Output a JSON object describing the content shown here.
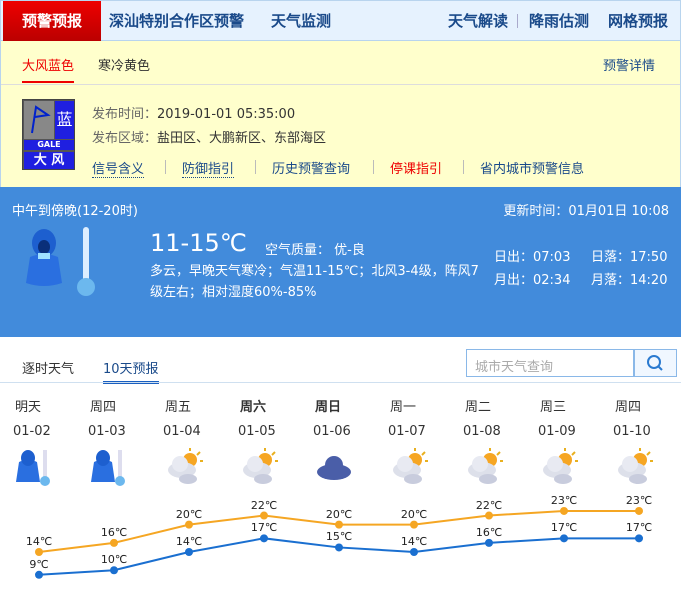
{
  "nav": {
    "active": "预警预报",
    "items": [
      "深汕特别合作区预警",
      "天气监测"
    ],
    "right": [
      "天气解读",
      "降雨估测",
      "网格预报"
    ]
  },
  "warning": {
    "tabs": [
      "大风蓝色",
      "寒冷黄色"
    ],
    "detail_link": "预警详情",
    "signal": {
      "level": "蓝",
      "en": "GALE",
      "cn": "大 风"
    },
    "time_label": "发布时间：",
    "time": "2019-01-01 05:35:00",
    "area_label": "发布区域：",
    "area": "盐田区、大鹏新区、东部海区",
    "links": [
      "信号含义",
      "防御指引",
      "历史预警查询",
      "停课指引",
      "省内城市预警信息"
    ]
  },
  "now": {
    "period": "中午到傍晚(12-20时)",
    "update": "更新时间：01月01日 10:08",
    "temp": "11-15℃",
    "aqi_label": "空气质量：",
    "aqi": "优-良",
    "desc": "多云，早晚天气寒冷；气温11-15℃；北风3-4级，阵风7级左右；相对湿度60%-85%",
    "sunrise": "日出：07:03",
    "sunset": "日落：17:50",
    "moonrise": "月出：02:34",
    "moonset": "月落：14:20"
  },
  "forecast_tabs": [
    "逐时天气",
    "10天预报"
  ],
  "search": {
    "placeholder": "城市天气查询"
  },
  "colors": {
    "high": "#f5a623",
    "low": "#1a6fd0",
    "accent_red": "#e00000",
    "now_bg": "#428bdb"
  },
  "chart_data": {
    "type": "line",
    "categories": [
      "01-02",
      "01-03",
      "01-04",
      "01-05",
      "01-06",
      "01-07",
      "01-08",
      "01-09",
      "01-10"
    ],
    "days": [
      "明天",
      "周四",
      "周五",
      "周六",
      "周日",
      "周一",
      "周二",
      "周三",
      "周四"
    ],
    "icons": [
      "cold",
      "cold",
      "partly-cloudy",
      "partly-cloudy",
      "cloudy",
      "partly-cloudy",
      "partly-cloudy",
      "partly-cloudy",
      "partly-cloudy"
    ],
    "series": [
      {
        "values": [
          14,
          16,
          20,
          22,
          20,
          20,
          22,
          23,
          23
        ]
      },
      {
        "values": [
          9,
          10,
          14,
          17,
          15,
          14,
          16,
          17,
          17
        ]
      }
    ],
    "unit": "℃"
  }
}
